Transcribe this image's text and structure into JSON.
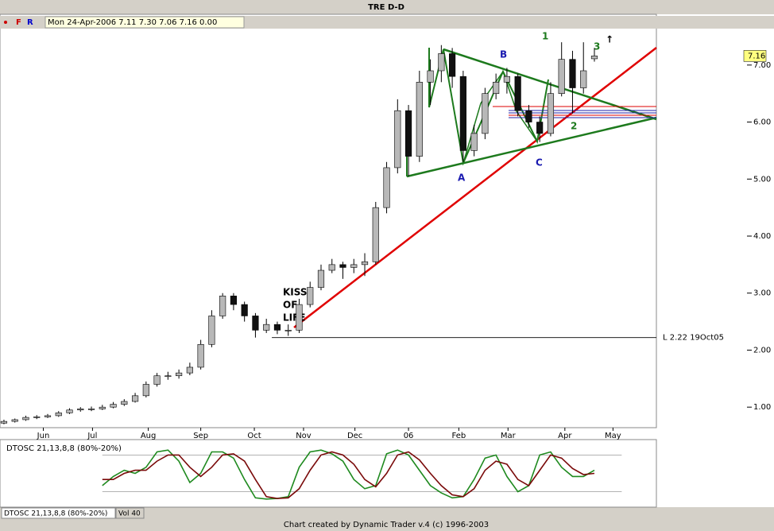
{
  "header": {
    "markers": [
      "F",
      "R"
    ],
    "quote": "Mon 24-Apr-2006  7.11  7.30  7.06  7.16  0.00"
  },
  "chart_data": [
    {
      "type": "candlestick",
      "title": "TRE    D-D",
      "up_color": "#b8b8b8",
      "down_color": "#111111",
      "xlim": [
        -0.36,
        59.67
      ],
      "xticks": [
        {
          "value": 3.6,
          "label": "Jun"
        },
        {
          "value": 8.1,
          "label": "Jul"
        },
        {
          "value": 13.2,
          "label": "Aug"
        },
        {
          "value": 18.0,
          "label": "Sep"
        },
        {
          "value": 22.9,
          "label": "Oct"
        },
        {
          "value": 27.4,
          "label": "Nov"
        },
        {
          "value": 32.1,
          "label": "Dec"
        },
        {
          "value": 37.0,
          "label": "06"
        },
        {
          "value": 41.6,
          "label": "Feb"
        },
        {
          "value": 46.1,
          "label": "Mar"
        },
        {
          "value": 51.3,
          "label": "Apr"
        },
        {
          "value": 55.7,
          "label": "May"
        }
      ],
      "ylim": [
        0.64,
        7.89
      ],
      "yticks": [
        {
          "value": 1,
          "label": "1.00"
        },
        {
          "value": 2,
          "label": "2.00"
        },
        {
          "value": 3,
          "label": "3.00"
        },
        {
          "value": 4,
          "label": "4.00"
        },
        {
          "value": 5,
          "label": "5.00"
        },
        {
          "value": 6,
          "label": "6.00"
        },
        {
          "value": 7,
          "label": "7.00"
        }
      ],
      "last_price": 7.16,
      "level": {
        "value": 2.22,
        "label": "L 2.22 19Oct05"
      },
      "annotations": [
        "KISS",
        "OF",
        "LIFE",
        "A",
        "B",
        "C",
        "1",
        "2",
        "3",
        "↑"
      ],
      "ohlc": [
        [
          0.72,
          0.78,
          0.7,
          0.75
        ],
        [
          0.75,
          0.8,
          0.73,
          0.78
        ],
        [
          0.78,
          0.85,
          0.76,
          0.82
        ],
        [
          0.82,
          0.86,
          0.79,
          0.83
        ],
        [
          0.83,
          0.88,
          0.81,
          0.85
        ],
        [
          0.85,
          0.93,
          0.83,
          0.9
        ],
        [
          0.9,
          0.98,
          0.88,
          0.95
        ],
        [
          0.95,
          1.0,
          0.92,
          0.97
        ],
        [
          0.97,
          1.01,
          0.93,
          0.97
        ],
        [
          0.97,
          1.04,
          0.95,
          1.0
        ],
        [
          1.0,
          1.09,
          0.98,
          1.05
        ],
        [
          1.05,
          1.14,
          1.02,
          1.1
        ],
        [
          1.1,
          1.25,
          1.08,
          1.2
        ],
        [
          1.2,
          1.45,
          1.17,
          1.4
        ],
        [
          1.4,
          1.6,
          1.36,
          1.55
        ],
        [
          1.55,
          1.62,
          1.48,
          1.55
        ],
        [
          1.55,
          1.66,
          1.5,
          1.6
        ],
        [
          1.6,
          1.78,
          1.56,
          1.7
        ],
        [
          1.7,
          2.18,
          1.66,
          2.1
        ],
        [
          2.1,
          2.7,
          2.05,
          2.6
        ],
        [
          2.6,
          3.0,
          2.55,
          2.95
        ],
        [
          2.95,
          3.0,
          2.7,
          2.8
        ],
        [
          2.8,
          2.85,
          2.5,
          2.6
        ],
        [
          2.6,
          2.65,
          2.22,
          2.35
        ],
        [
          2.35,
          2.55,
          2.3,
          2.45
        ],
        [
          2.45,
          2.5,
          2.28,
          2.35
        ],
        [
          2.35,
          2.45,
          2.25,
          2.35
        ],
        [
          2.35,
          2.9,
          2.3,
          2.8
        ],
        [
          2.8,
          3.2,
          2.75,
          3.1
        ],
        [
          3.1,
          3.5,
          3.05,
          3.4
        ],
        [
          3.4,
          3.6,
          3.35,
          3.5
        ],
        [
          3.5,
          3.55,
          3.25,
          3.45
        ],
        [
          3.45,
          3.6,
          3.35,
          3.5
        ],
        [
          3.5,
          3.7,
          3.3,
          3.55
        ],
        [
          3.55,
          4.6,
          3.5,
          4.5
        ],
        [
          4.5,
          5.3,
          4.4,
          5.2
        ],
        [
          5.2,
          6.4,
          5.1,
          6.2
        ],
        [
          6.2,
          6.3,
          5.05,
          5.4
        ],
        [
          5.4,
          6.9,
          5.3,
          6.7
        ],
        [
          6.7,
          7.1,
          6.3,
          6.9
        ],
        [
          6.9,
          7.35,
          6.7,
          7.2
        ],
        [
          7.2,
          7.3,
          6.6,
          6.8
        ],
        [
          6.8,
          6.9,
          5.3,
          5.5
        ],
        [
          5.5,
          5.95,
          5.4,
          5.8
        ],
        [
          5.8,
          6.6,
          5.7,
          6.5
        ],
        [
          6.5,
          6.85,
          6.4,
          6.7
        ],
        [
          6.7,
          6.95,
          6.5,
          6.8
        ],
        [
          6.8,
          6.85,
          6.1,
          6.2
        ],
        [
          6.2,
          6.3,
          5.9,
          6.0
        ],
        [
          6.0,
          6.1,
          5.65,
          5.8
        ],
        [
          5.8,
          6.7,
          5.75,
          6.5
        ],
        [
          6.5,
          7.4,
          6.45,
          7.1
        ],
        [
          7.1,
          7.25,
          6.15,
          6.6
        ],
        [
          6.6,
          7.4,
          6.5,
          6.9
        ],
        [
          7.11,
          7.3,
          7.06,
          7.16
        ]
      ]
    },
    {
      "type": "line",
      "title": "DTOSC 21,13,8,8 (80%-20%)",
      "xlim": [
        -0.36,
        59.67
      ],
      "ylim": [
        0,
        100
      ],
      "yticks": [
        20,
        80
      ],
      "series": [
        {
          "color": "#1f8a1f",
          "values": [
            null,
            null,
            null,
            null,
            null,
            null,
            null,
            null,
            null,
            30,
            45,
            55,
            50,
            60,
            85,
            88,
            70,
            35,
            50,
            85,
            85,
            75,
            40,
            10,
            8,
            9,
            12,
            60,
            85,
            88,
            82,
            70,
            40,
            25,
            30,
            82,
            88,
            80,
            55,
            30,
            18,
            10,
            12,
            40,
            75,
            80,
            45,
            20,
            30,
            80,
            85,
            60,
            45,
            45,
            55
          ]
        },
        {
          "color": "#7a0a0a",
          "values": [
            null,
            null,
            null,
            null,
            null,
            null,
            null,
            null,
            null,
            40,
            40,
            50,
            55,
            55,
            70,
            80,
            80,
            60,
            45,
            60,
            80,
            82,
            70,
            40,
            12,
            9,
            10,
            25,
            55,
            80,
            85,
            80,
            65,
            40,
            28,
            50,
            80,
            85,
            72,
            50,
            30,
            15,
            12,
            25,
            55,
            70,
            65,
            40,
            30,
            55,
            80,
            75,
            58,
            48,
            50
          ]
        }
      ]
    }
  ],
  "tabs": [
    "DTOSC 21,13,8,8 (80%-20%)",
    "Vol 40"
  ],
  "footer": "Chart created by Dynamic Trader v.4  (c) 1996-2003"
}
